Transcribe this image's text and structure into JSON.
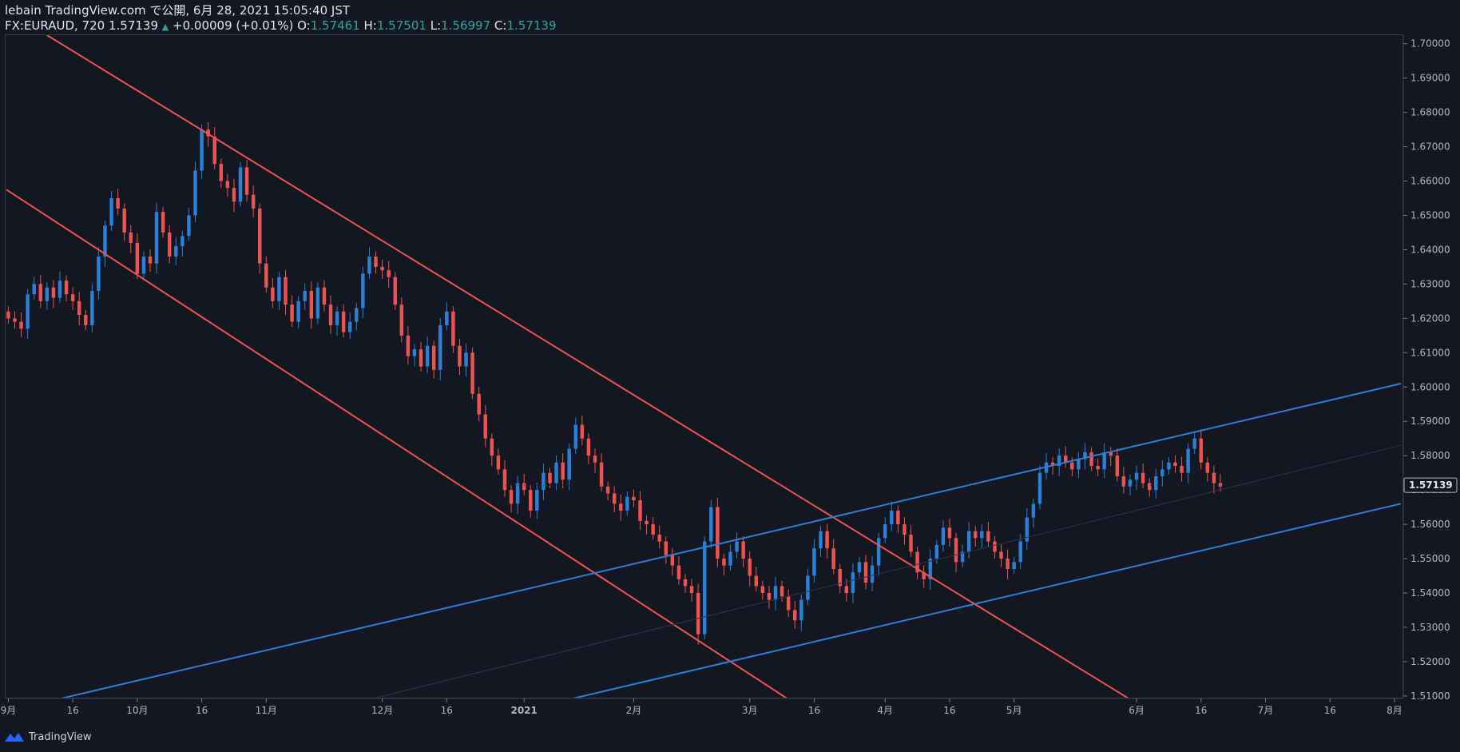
{
  "header": {
    "published": "lebain TradingView.com で公開, 6月 28, 2021 15:05:40 JST",
    "symbol": "FX:EURAUD, 720",
    "last": "1.57139",
    "arrow": "▲",
    "change": "+0.00009 (+0.01%)",
    "open_label": "O:",
    "open": "1.57461",
    "high_label": "H:",
    "high": "1.57501",
    "low_label": "L:",
    "low": "1.56997",
    "close_label": "C:",
    "close": "1.57139"
  },
  "footer": {
    "brand": "TradingView",
    "logo_icon": "tradingview-logo-icon"
  },
  "colors": {
    "background": "#131722",
    "up": "#2a7fd8",
    "down": "#ef5350",
    "channel_red": "#ef5350",
    "channel_blue": "#2a7fd8",
    "text": "#b2b5be"
  },
  "chart_data": {
    "type": "candlestick",
    "y_axis": {
      "ticks": [
        "1.70000",
        "1.69000",
        "1.68000",
        "1.67000",
        "1.66000",
        "1.65000",
        "1.64000",
        "1.63000",
        "1.62000",
        "1.61000",
        "1.60000",
        "1.59000",
        "1.58000",
        "1.57000",
        "1.56000",
        "1.55000",
        "1.54000",
        "1.53000",
        "1.52000",
        "1.51000"
      ],
      "range": [
        1.5095,
        1.7025
      ],
      "last_price_label": "1.57139"
    },
    "x_axis": {
      "ticks": [
        "9月",
        "16",
        "10月",
        "16",
        "11月",
        "12月",
        "16",
        "2021",
        "2月",
        "3月",
        "16",
        "4月",
        "16",
        "5月",
        "6月",
        "16",
        "7月",
        "16",
        "8月"
      ],
      "tick_index": [
        0,
        10,
        20,
        30,
        40,
        58,
        68,
        80,
        97,
        115,
        125,
        136,
        146,
        156,
        175,
        185,
        195,
        205,
        215
      ],
      "visible_index_range": [
        -0.3,
        216
      ]
    },
    "closes": [
      1.62,
      1.619,
      1.617,
      1.627,
      1.63,
      1.625,
      1.629,
      1.626,
      1.631,
      1.627,
      1.625,
      1.621,
      1.618,
      1.628,
      1.638,
      1.647,
      1.655,
      1.652,
      1.645,
      1.642,
      1.633,
      1.638,
      1.636,
      1.651,
      1.645,
      1.638,
      1.641,
      1.644,
      1.65,
      1.663,
      1.675,
      1.673,
      1.665,
      1.66,
      1.658,
      1.654,
      1.664,
      1.656,
      1.652,
      1.636,
      1.629,
      1.625,
      1.632,
      1.624,
      1.619,
      1.625,
      1.628,
      1.62,
      1.629,
      1.624,
      1.618,
      1.622,
      1.616,
      1.619,
      1.623,
      1.633,
      1.638,
      1.635,
      1.634,
      1.632,
      1.624,
      1.615,
      1.609,
      1.611,
      1.606,
      1.612,
      1.605,
      1.618,
      1.622,
      1.612,
      1.606,
      1.61,
      1.598,
      1.592,
      1.585,
      1.58,
      1.576,
      1.57,
      1.566,
      1.572,
      1.57,
      1.564,
      1.57,
      1.575,
      1.572,
      1.578,
      1.573,
      1.582,
      1.589,
      1.585,
      1.58,
      1.578,
      1.571,
      1.569,
      1.566,
      1.564,
      1.568,
      1.567,
      1.561,
      1.56,
      1.557,
      1.555,
      1.551,
      1.548,
      1.544,
      1.542,
      1.54,
      1.528,
      1.555,
      1.565,
      1.55,
      1.548,
      1.552,
      1.555,
      1.55,
      1.545,
      1.542,
      1.54,
      1.538,
      1.542,
      1.539,
      1.535,
      1.532,
      1.538,
      1.545,
      1.553,
      1.558,
      1.553,
      1.547,
      1.542,
      1.54,
      1.546,
      1.549,
      1.543,
      1.548,
      1.556,
      1.56,
      1.564,
      1.56,
      1.557,
      1.552,
      1.546,
      1.544,
      1.55,
      1.554,
      1.559,
      1.556,
      1.549,
      1.552,
      1.558,
      1.556,
      1.558,
      1.555,
      1.552,
      1.55,
      1.547,
      1.549,
      1.555,
      1.562,
      1.566,
      1.575,
      1.578,
      1.577,
      1.58,
      1.578,
      1.576,
      1.579,
      1.581,
      1.577,
      1.576,
      1.581,
      1.58,
      1.574,
      1.571,
      1.573,
      1.575,
      1.572,
      1.57,
      1.574,
      1.576,
      1.578,
      1.577,
      1.575,
      1.582,
      1.585,
      1.578,
      1.575,
      1.572,
      1.571
    ]
  }
}
